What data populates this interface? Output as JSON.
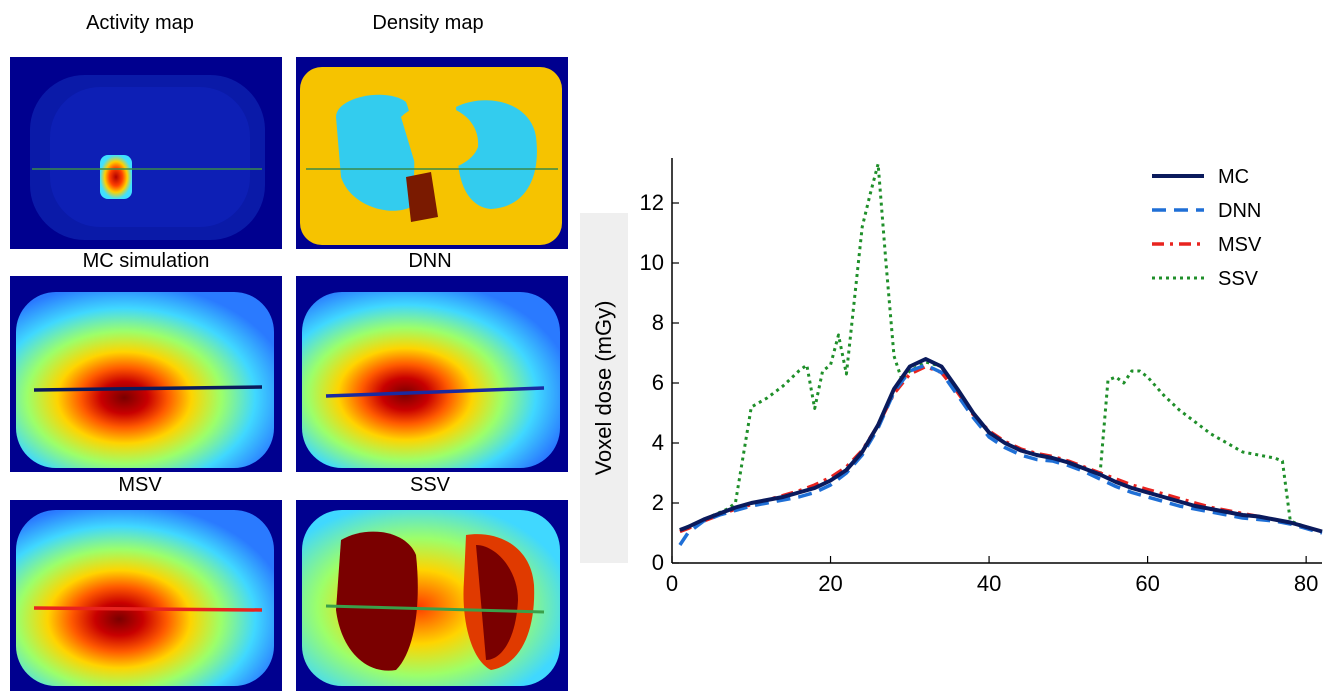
{
  "panels": {
    "activity_title": "Activity map",
    "density_title": "Density map",
    "mc_title": "MC simulation",
    "dnn_title": "DNN",
    "msv_title": "MSV",
    "ssv_title": "SSV"
  },
  "chart_data": {
    "type": "line",
    "title": "",
    "xlabel": "",
    "ylabel": "Voxel dose (mGy)",
    "xlim": [
      0,
      82
    ],
    "ylim": [
      0,
      13.5
    ],
    "xticks": [
      0,
      20,
      40,
      60,
      80
    ],
    "yticks": [
      0,
      2,
      4,
      6,
      8,
      10,
      12
    ],
    "grid": false,
    "legend_position": "top-right",
    "series": [
      {
        "name": "MC",
        "color": "#0a1a5c",
        "dash": "solid",
        "x": [
          1,
          2,
          4,
          6,
          8,
          10,
          12,
          14,
          16,
          18,
          20,
          22,
          24,
          26,
          28,
          30,
          32,
          34,
          36,
          38,
          40,
          42,
          44,
          46,
          48,
          50,
          52,
          54,
          56,
          58,
          60,
          62,
          64,
          66,
          68,
          70,
          72,
          74,
          76,
          78,
          80,
          82
        ],
        "y": [
          1.1,
          1.2,
          1.45,
          1.65,
          1.85,
          2.0,
          2.1,
          2.2,
          2.35,
          2.5,
          2.75,
          3.1,
          3.7,
          4.6,
          5.8,
          6.55,
          6.8,
          6.55,
          5.8,
          5.0,
          4.35,
          4.0,
          3.75,
          3.6,
          3.5,
          3.35,
          3.15,
          2.95,
          2.7,
          2.5,
          2.35,
          2.2,
          2.05,
          1.9,
          1.8,
          1.7,
          1.6,
          1.55,
          1.45,
          1.35,
          1.2,
          1.05
        ]
      },
      {
        "name": "DNN",
        "color": "#1f6fd6",
        "dash": "dashed",
        "x": [
          1,
          2,
          4,
          6,
          8,
          10,
          12,
          14,
          16,
          18,
          20,
          22,
          24,
          26,
          28,
          30,
          32,
          34,
          36,
          38,
          40,
          42,
          44,
          46,
          48,
          50,
          52,
          54,
          56,
          58,
          60,
          62,
          64,
          66,
          68,
          70,
          72,
          74,
          76,
          78,
          80,
          82
        ],
        "y": [
          0.6,
          1.0,
          1.4,
          1.6,
          1.75,
          1.9,
          2.0,
          2.1,
          2.2,
          2.35,
          2.6,
          3.0,
          3.6,
          4.5,
          5.7,
          6.4,
          6.6,
          6.35,
          5.6,
          4.85,
          4.2,
          3.85,
          3.6,
          3.45,
          3.4,
          3.25,
          3.05,
          2.8,
          2.55,
          2.35,
          2.2,
          2.05,
          1.9,
          1.8,
          1.7,
          1.6,
          1.5,
          1.45,
          1.4,
          1.3,
          1.15,
          1.0
        ]
      },
      {
        "name": "MSV",
        "color": "#e8231f",
        "dash": "dashdot",
        "x": [
          1,
          2,
          4,
          6,
          8,
          10,
          12,
          14,
          16,
          18,
          20,
          22,
          24,
          26,
          28,
          30,
          32,
          34,
          36,
          38,
          40,
          42,
          44,
          46,
          48,
          50,
          52,
          54,
          56,
          58,
          60,
          62,
          64,
          66,
          68,
          70,
          72,
          74,
          76,
          78,
          80,
          82
        ],
        "y": [
          1.05,
          1.15,
          1.4,
          1.6,
          1.8,
          1.95,
          2.1,
          2.25,
          2.4,
          2.6,
          2.85,
          3.2,
          3.75,
          4.6,
          5.65,
          6.3,
          6.55,
          6.35,
          5.7,
          4.95,
          4.4,
          4.05,
          3.8,
          3.65,
          3.55,
          3.4,
          3.2,
          3.0,
          2.8,
          2.6,
          2.45,
          2.3,
          2.15,
          2.0,
          1.85,
          1.75,
          1.65,
          1.55,
          1.45,
          1.35,
          1.2,
          1.05
        ]
      },
      {
        "name": "SSV",
        "color": "#1f8f2a",
        "dash": "dotted",
        "x": [
          1,
          4,
          7,
          8,
          10,
          12,
          14,
          16,
          17,
          18,
          19,
          20,
          21,
          22,
          24,
          25,
          26,
          27,
          28,
          29,
          30,
          32,
          34,
          36,
          38,
          40,
          42,
          44,
          46,
          48,
          50,
          52,
          54,
          55,
          56,
          57,
          58,
          59,
          60,
          62,
          64,
          66,
          68,
          70,
          72,
          74,
          76,
          77,
          78,
          80,
          82
        ],
        "y": [
          1.1,
          1.45,
          1.8,
          2.0,
          5.2,
          5.5,
          5.9,
          6.4,
          6.6,
          5.15,
          6.4,
          6.6,
          7.6,
          6.3,
          11.2,
          12.3,
          13.3,
          10.0,
          6.9,
          6.1,
          6.4,
          6.7,
          6.55,
          5.8,
          5.0,
          4.35,
          4.0,
          3.75,
          3.6,
          3.5,
          3.35,
          3.15,
          2.95,
          6.1,
          6.2,
          6.0,
          6.4,
          6.4,
          6.2,
          5.6,
          5.1,
          4.7,
          4.3,
          4.0,
          3.7,
          3.6,
          3.5,
          3.4,
          1.4,
          1.2,
          1.05
        ]
      }
    ]
  }
}
